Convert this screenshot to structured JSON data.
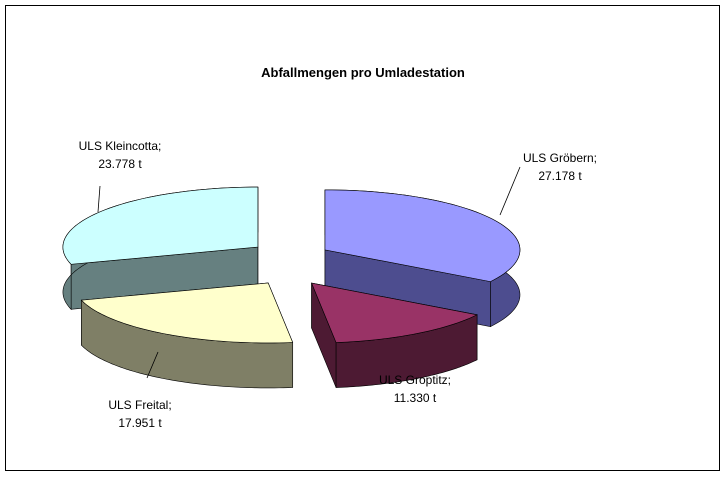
{
  "chart_data": {
    "type": "pie3d",
    "title": "Abfallmengen pro Umladestation",
    "categories": [
      "ULS Gröbern",
      "ULS Groptitz",
      "ULS Freital",
      "ULS Kleincotta"
    ],
    "label_separator": ";",
    "values": [
      27178,
      11330,
      17951,
      23778
    ],
    "value_labels": [
      "27.178 t",
      "11.330 t",
      "17.951 t",
      "23.778 t"
    ],
    "colors": [
      "#9999ff",
      "#993366",
      "#ffffcc",
      "#ccffff"
    ],
    "side_colors": [
      "#4d4d8f",
      "#4d1a33",
      "#7f7f66",
      "#668080"
    ]
  }
}
